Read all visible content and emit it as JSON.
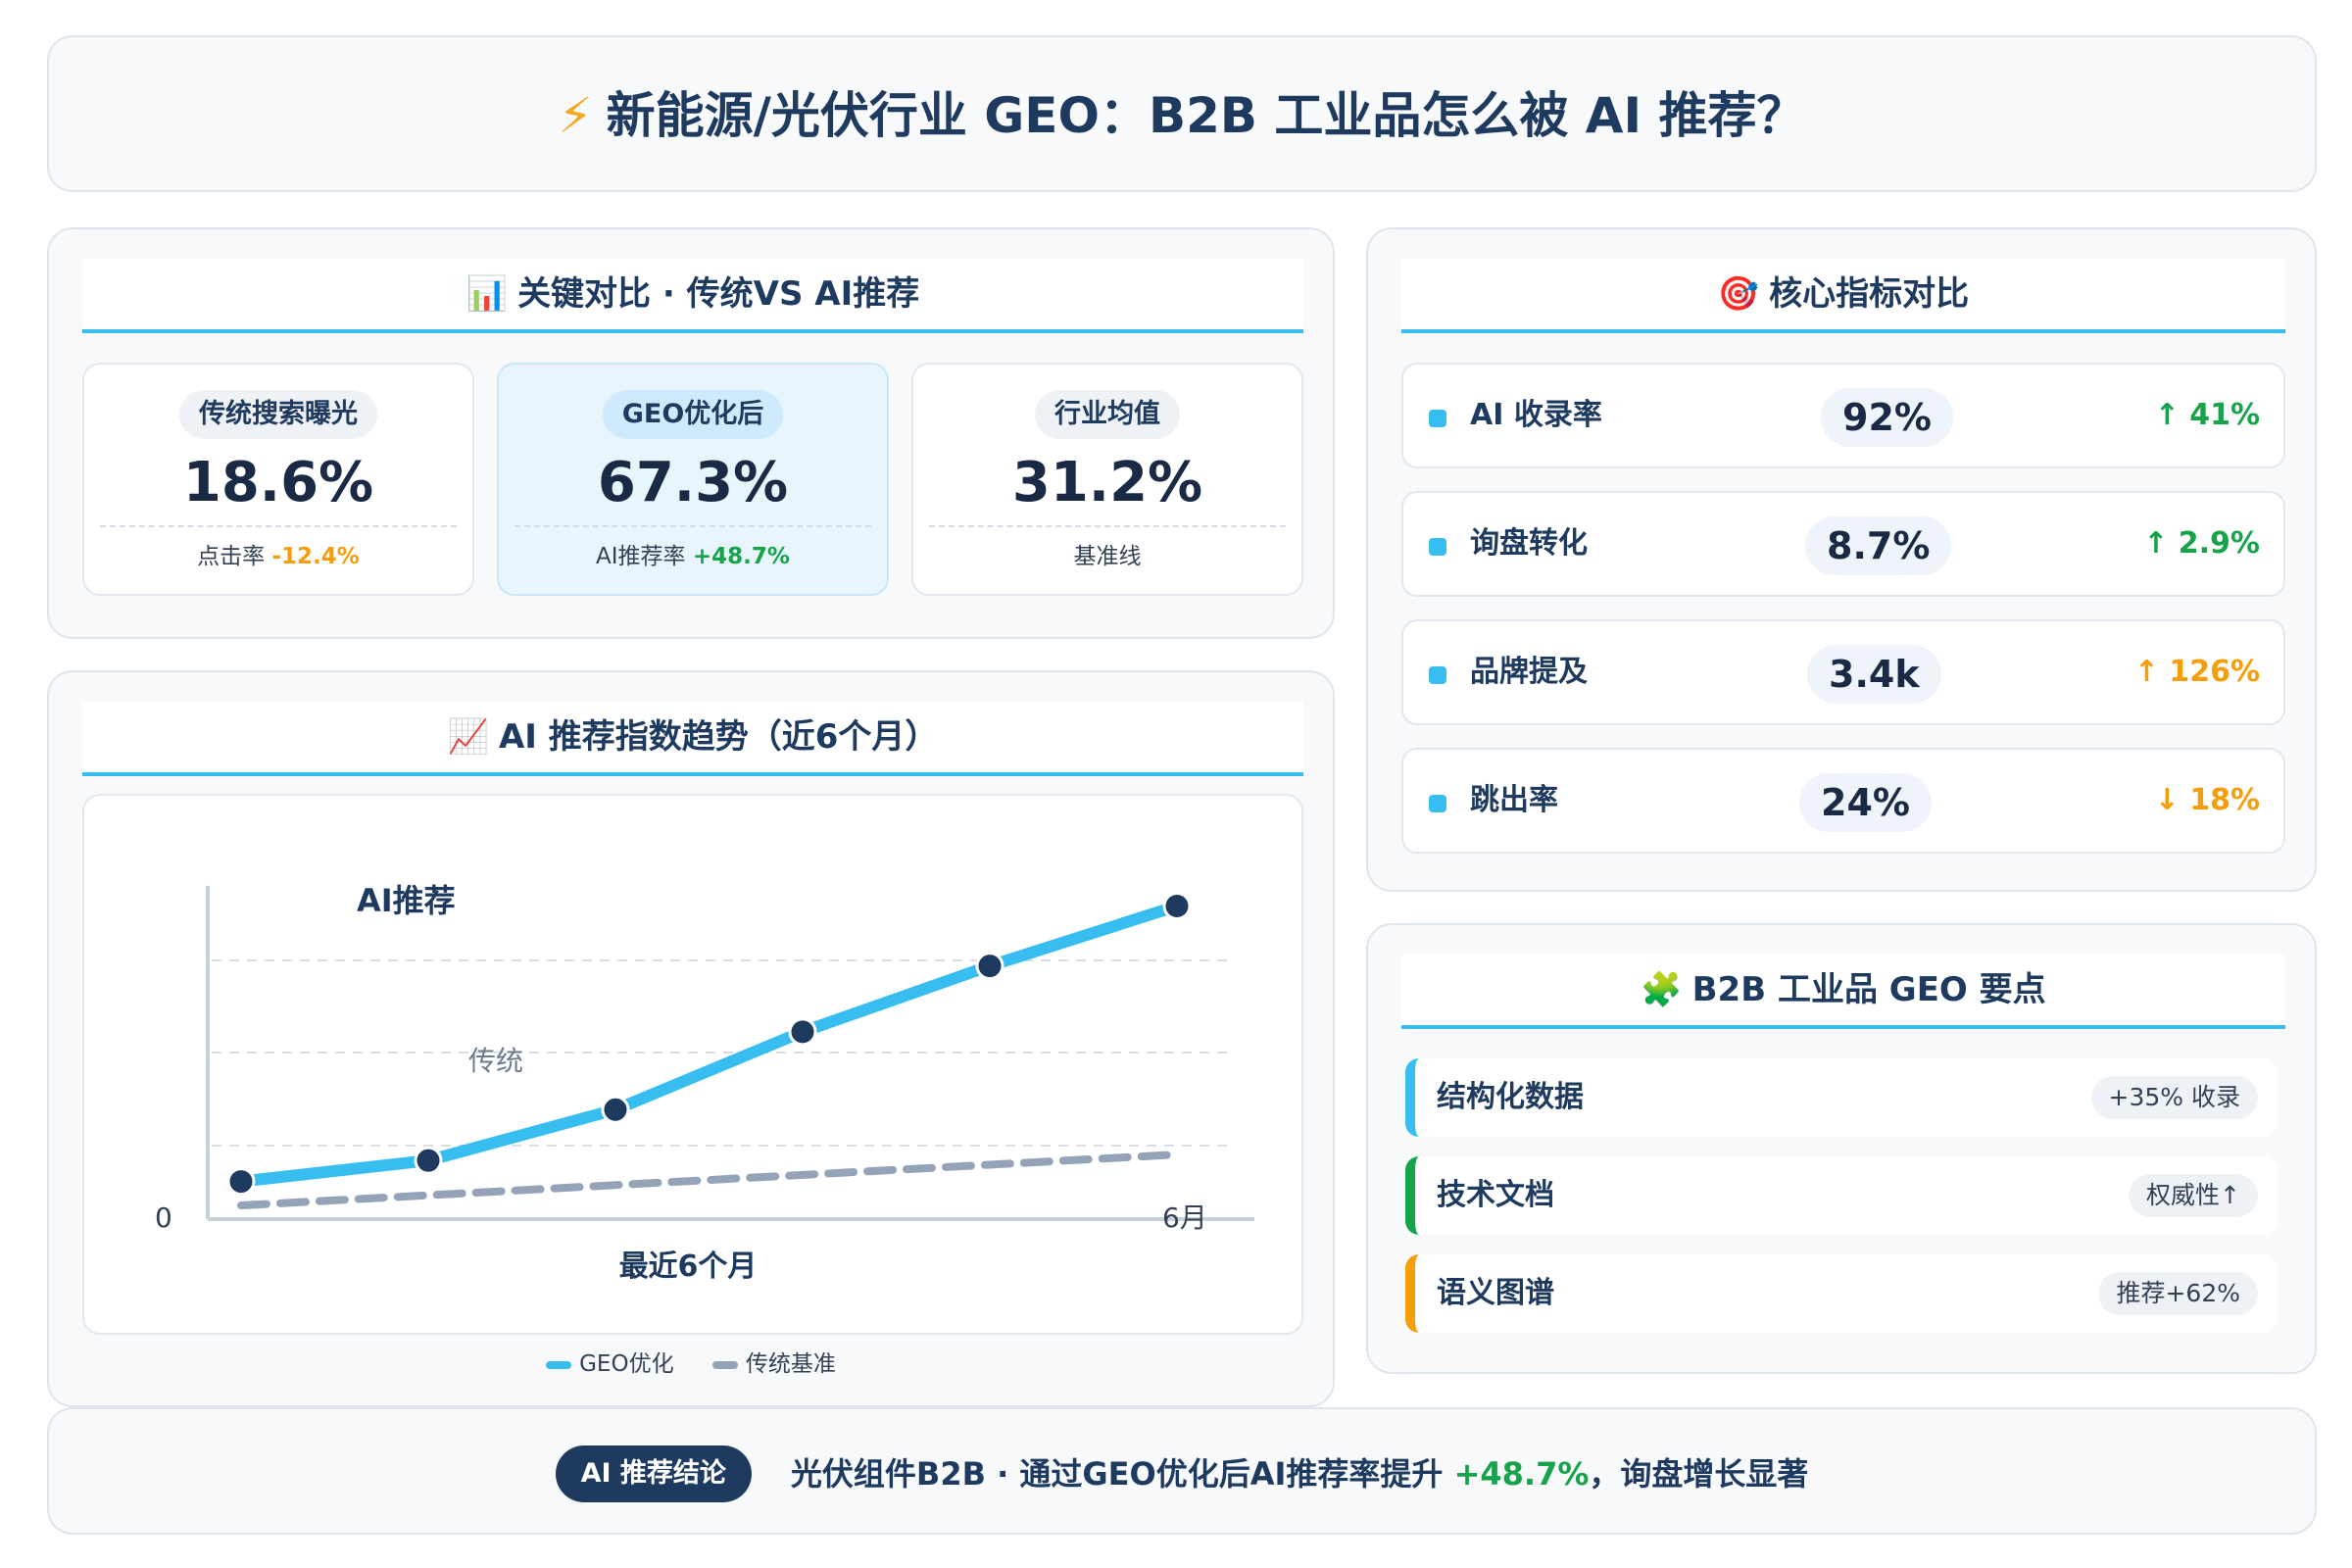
{
  "header": {
    "icon": "lightning-icon",
    "title": "新能源/光伏行业 GEO：B2B 工业品怎么被 AI 推荐？"
  },
  "compare": {
    "icon": "bar-chart-icon",
    "title": "关键对比 · 传统VS AI推荐",
    "stats": [
      {
        "label": "传统搜索曝光",
        "value": "18.6%",
        "sub": "点击率",
        "change": "-12.4%"
      },
      {
        "label": "GEO优化后",
        "value": "67.3%",
        "sub": "AI推荐率",
        "change": "+48.7%"
      },
      {
        "label": "行业均值",
        "value": "31.2%",
        "sub": "基准线",
        "change": ""
      }
    ]
  },
  "metrics": {
    "icon": "target-icon",
    "title": "核心指标对比",
    "rows": [
      {
        "label": "AI 收录率",
        "value": "92%",
        "change": "↑ 41%",
        "direction": "up",
        "color": "#16a34a"
      },
      {
        "label": "询盘转化",
        "value": "8.7%",
        "change": "↑ 2.9%",
        "direction": "up",
        "color": "#16a34a"
      },
      {
        "label": "品牌提及",
        "value": "3.4k",
        "change": "↑ 126%",
        "direction": "up",
        "color": "#f59e0b"
      },
      {
        "label": "跳出率",
        "value": "24%",
        "change": "↓ 18%",
        "direction": "down",
        "color": "#f59e0b"
      }
    ]
  },
  "trend": {
    "icon": "line-chart-icon",
    "title": "AI 推荐指数趋势（近6个月）",
    "legend": [
      "GEO优化",
      "传统基准"
    ]
  },
  "chart_data": {
    "type": "line",
    "x": [
      1,
      2,
      3,
      4,
      5,
      6
    ],
    "series": [
      {
        "name": "GEO优化",
        "values": [
          8,
          15,
          32,
          58,
          80,
          100
        ],
        "color": "#38bdf0"
      },
      {
        "name": "传统基准",
        "values": [
          5,
          9,
          13,
          16,
          19,
          22
        ],
        "color": "#94a3b8"
      }
    ],
    "annotations": [
      "AI推荐",
      "传统"
    ],
    "xlabel": "最近6个月",
    "x_tick_end": "6月",
    "y_tick_start": "0",
    "ylim": [
      0,
      110
    ],
    "grid": true
  },
  "geo": {
    "icon": "puzzle-icon",
    "title": "B2B 工业品 GEO 要点",
    "items": [
      {
        "label": "结构化数据",
        "tag": "+35% 收录",
        "color": "#38bdf0"
      },
      {
        "label": "技术文档",
        "tag": "权威性↑",
        "color": "#16a34a"
      },
      {
        "label": "语义图谱",
        "tag": "推荐+62%",
        "color": "#f59e0b"
      }
    ]
  },
  "conclusion": {
    "badge": "AI 推荐结论",
    "text_before": "光伏组件B2B · 通过GEO优化后AI推荐率提升 ",
    "highlight": "+48.7%",
    "text_after": "，询盘增长显著"
  }
}
